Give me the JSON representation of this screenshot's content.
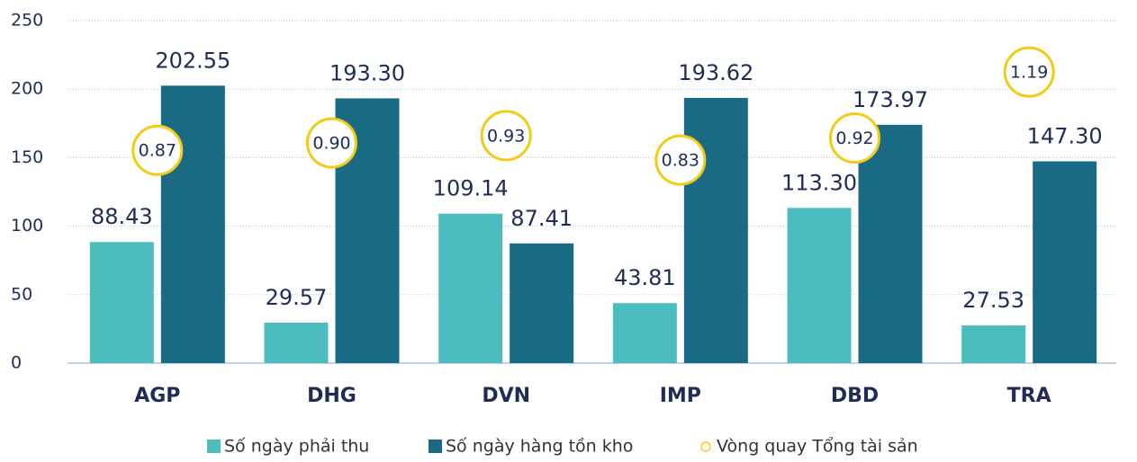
{
  "chart_data": {
    "type": "bar",
    "categories": [
      "AGP",
      "DHG",
      "DVN",
      "IMP",
      "DBD",
      "TRA"
    ],
    "series": [
      {
        "name": "Số ngày phải thu",
        "color": "#4dbcbf",
        "values": [
          88.43,
          29.57,
          109.14,
          43.81,
          113.3,
          27.53
        ],
        "value_labels": [
          "88.43",
          "29.57",
          "109.14",
          "43.81",
          "113.30",
          "27.53"
        ]
      },
      {
        "name": "Số ngày hàng tồn kho",
        "color": "#1b6a84",
        "values": [
          202.55,
          193.3,
          87.41,
          193.62,
          173.97,
          147.3
        ],
        "value_labels": [
          "202.55",
          "193.30",
          "87.41",
          "193.62",
          "173.97",
          "147.30"
        ]
      },
      {
        "name": "Vòng quay Tổng tài sản",
        "color": "#f2cb16",
        "axis": "y2",
        "values": [
          0.87,
          0.9,
          0.93,
          0.83,
          0.92,
          1.19
        ],
        "value_labels": [
          "0.87",
          "0.90",
          "0.93",
          "0.83",
          "0.92",
          "1.19"
        ]
      }
    ],
    "ylim": [
      0,
      250
    ],
    "yticks": [
      0,
      50,
      100,
      150,
      200,
      250
    ],
    "y2lim": [
      0,
      1.4
    ],
    "grid": true,
    "legend": "bottom"
  }
}
